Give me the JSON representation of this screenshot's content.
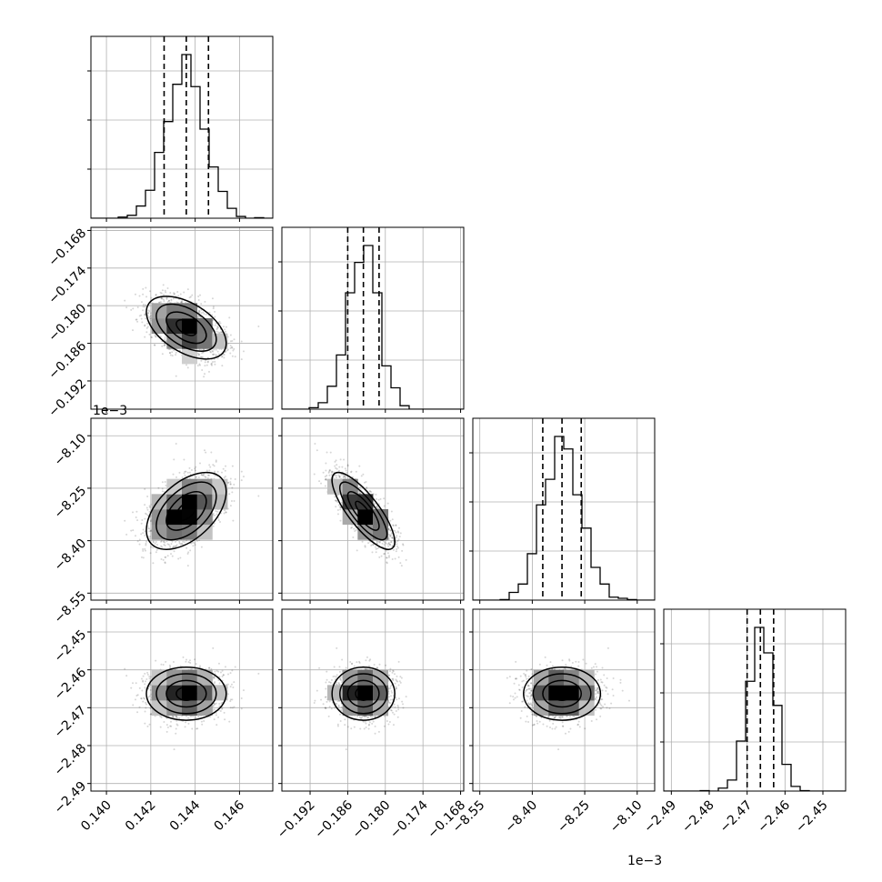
{
  "chart_data": {
    "type": "corner",
    "params": [
      {
        "id": "p0",
        "mean": 0.1436,
        "sd": 0.0009,
        "range": [
          0.1393,
          0.1475
        ],
        "ticks": [
          "0.140",
          "0.142",
          "0.144",
          "0.146"
        ],
        "tick_values": [
          0.14,
          0.142,
          0.144,
          0.146
        ],
        "quantiles": [
          0.1426,
          0.1436,
          0.1446
        ],
        "offset_text": ""
      },
      {
        "id": "p1",
        "mean": -0.1835,
        "sd": 0.0025,
        "range": [
          -0.1965,
          -0.1675
        ],
        "ticks": [
          "−0.192",
          "−0.186",
          "−0.180",
          "−0.174",
          "−0.168"
        ],
        "tick_values": [
          -0.192,
          -0.186,
          -0.18,
          -0.174,
          -0.168
        ],
        "quantiles": [
          -0.186,
          -0.1835,
          -0.181
        ],
        "offset_text": ""
      },
      {
        "id": "p2",
        "mean": -8.315,
        "sd": 0.055,
        "range": [
          -8.57,
          -8.05
        ],
        "ticks": [
          "−8.55",
          "−8.40",
          "−8.25",
          "−8.10"
        ],
        "tick_values": [
          -8.55,
          -8.4,
          -8.25,
          -8.1
        ],
        "quantiles": [
          -8.37,
          -8.315,
          -8.26
        ],
        "offset_text": "1e−3"
      },
      {
        "id": "p3",
        "mean": -2.4663,
        "sd": 0.0035,
        "range": [
          -2.492,
          -2.444
        ],
        "ticks": [
          "−2.49",
          "−2.48",
          "−2.47",
          "−2.46",
          "−2.45"
        ],
        "tick_values": [
          -2.49,
          -2.48,
          -2.47,
          -2.46,
          -2.45
        ],
        "quantiles": [
          -2.47,
          -2.4665,
          -2.463
        ],
        "offset_text": "1e−3"
      }
    ],
    "correlations": {
      "0-1": -0.5,
      "0-2": 0.5,
      "1-2": -0.8,
      "0-3": 0.0,
      "1-3": 0.0,
      "2-3": 0.0
    },
    "n_samples": 1400,
    "grid": true,
    "colors": {
      "hist": "#000000",
      "contour": "#000000",
      "points": "#000000",
      "quantile_line": "#000000",
      "grid": "#b0b0b0"
    }
  }
}
